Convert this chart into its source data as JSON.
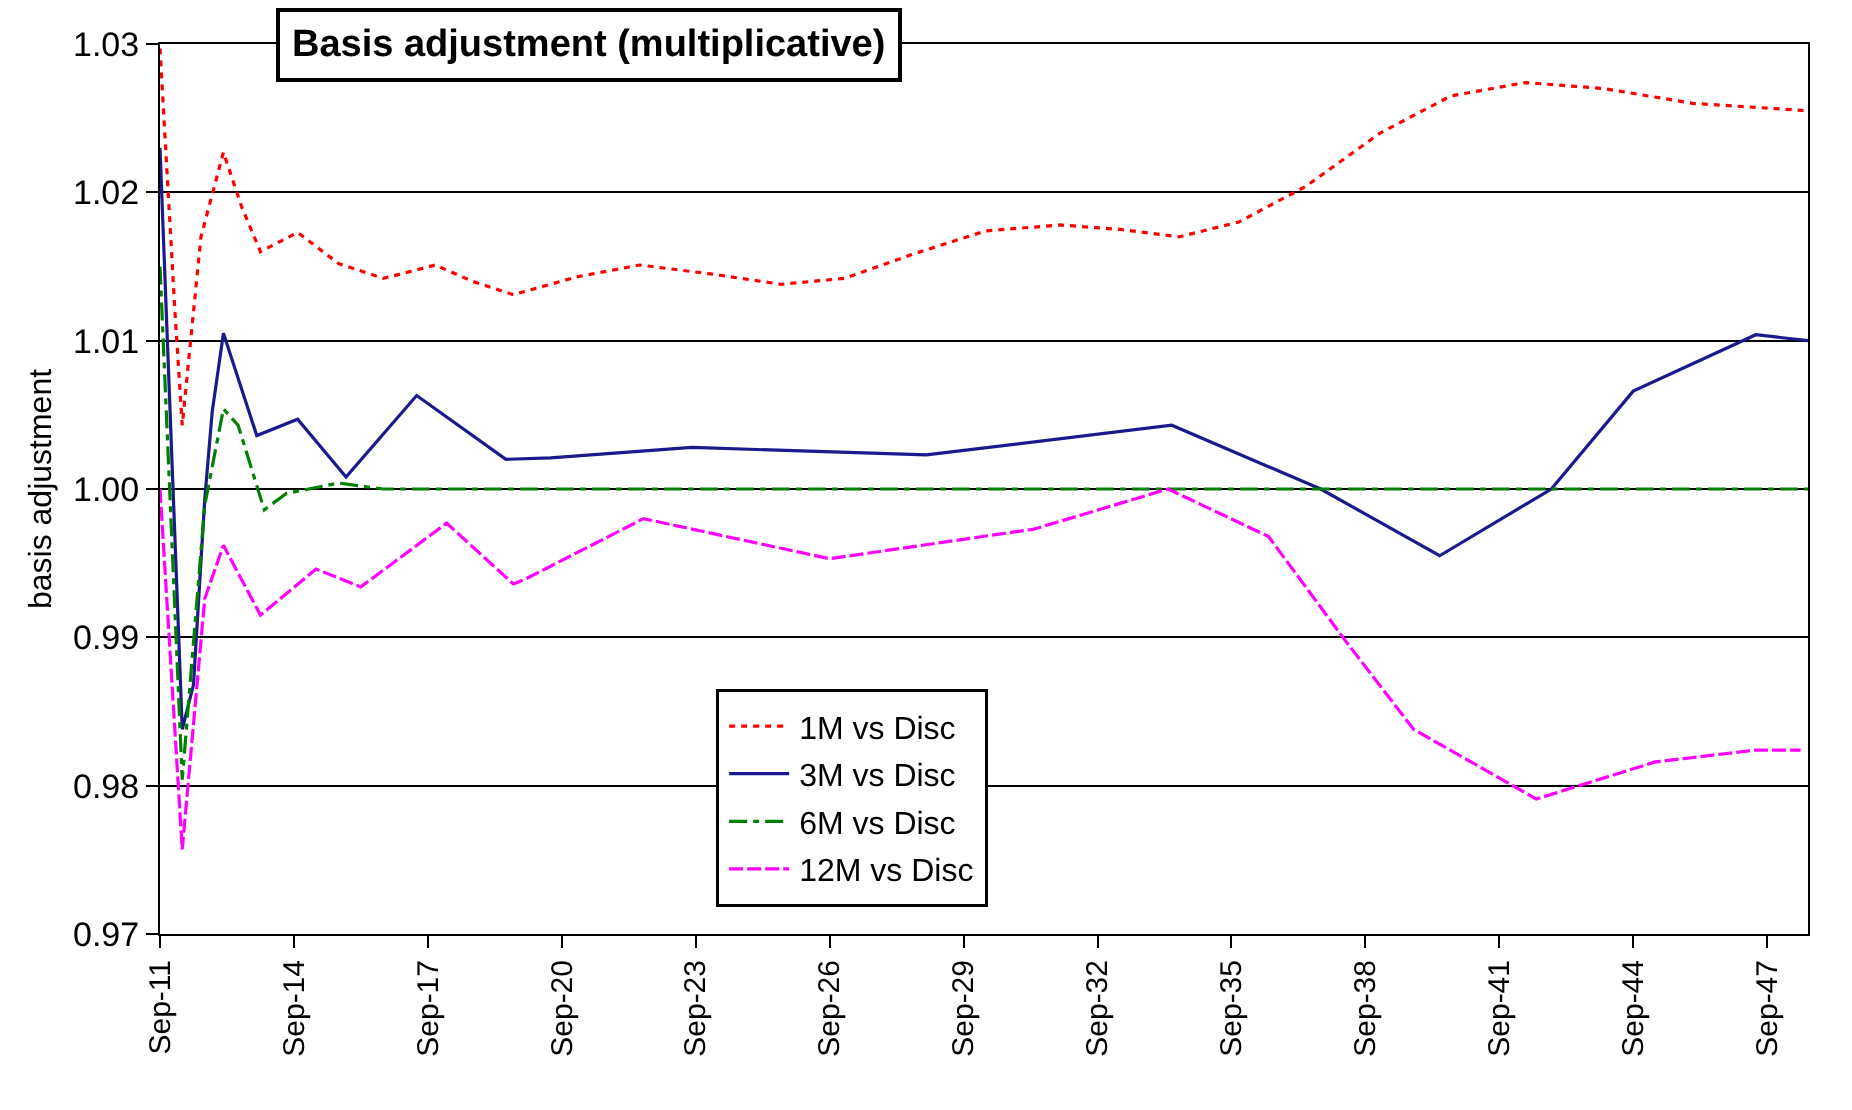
{
  "chart_data": {
    "type": "line",
    "title": "Basis adjustment (multiplicative)",
    "ylabel": "basis adjustment",
    "xlim": [
      "2011-09",
      "2048-08"
    ],
    "xticks": [
      {
        "value": "2011-09",
        "label": "Sep-11"
      },
      {
        "value": "2014-09",
        "label": "Sep-14"
      },
      {
        "value": "2017-09",
        "label": "Sep-17"
      },
      {
        "value": "2020-09",
        "label": "Sep-20"
      },
      {
        "value": "2023-09",
        "label": "Sep-23"
      },
      {
        "value": "2026-09",
        "label": "Sep-26"
      },
      {
        "value": "2029-09",
        "label": "Sep-29"
      },
      {
        "value": "2032-09",
        "label": "Sep-32"
      },
      {
        "value": "2035-09",
        "label": "Sep-35"
      },
      {
        "value": "2038-09",
        "label": "Sep-38"
      },
      {
        "value": "2041-09",
        "label": "Sep-41"
      },
      {
        "value": "2044-09",
        "label": "Sep-44"
      },
      {
        "value": "2047-09",
        "label": "Sep-47"
      }
    ],
    "ylim": [
      0.97,
      1.03
    ],
    "yticks": [
      {
        "value": 0.97,
        "label": "0.97"
      },
      {
        "value": 0.98,
        "label": "0.98"
      },
      {
        "value": 0.99,
        "label": "0.99"
      },
      {
        "value": 1.0,
        "label": "1.00"
      },
      {
        "value": 1.01,
        "label": "1.01"
      },
      {
        "value": 1.02,
        "label": "1.02"
      },
      {
        "value": 1.03,
        "label": "1.03"
      }
    ],
    "grid": "y",
    "legend": "bottom",
    "series": [
      {
        "name": "1M vs Disc",
        "color": "#ff0000",
        "line_style": "dotted",
        "x": [
          "2011-09",
          "2012-01",
          "2012-03",
          "2012-08",
          "2013-02",
          "2013-07",
          "2013-12",
          "2014-10",
          "2015-09",
          "2016-09",
          "2017-11",
          "2018-09",
          "2019-08",
          "2021-01",
          "2022-06",
          "2024-01",
          "2025-08",
          "2027-01",
          "2028-07",
          "2030-03",
          "2031-11",
          "2033-03",
          "2034-07",
          "2035-11",
          "2037-05",
          "2039-01",
          "2040-08",
          "2042-04",
          "2044-01",
          "2046-01",
          "2048-08"
        ],
        "values": [
          1.0297,
          1.012,
          1.0043,
          1.017,
          1.0227,
          1.019,
          1.016,
          1.0173,
          1.0152,
          1.0142,
          1.0151,
          1.014,
          1.0131,
          1.0143,
          1.0151,
          1.0145,
          1.0138,
          1.0142,
          1.0158,
          1.0174,
          1.0178,
          1.0175,
          1.017,
          1.018,
          1.0204,
          1.024,
          1.0265,
          1.0274,
          1.027,
          1.026,
          1.0255
        ]
      },
      {
        "name": "3M vs Disc",
        "color": "#1a1a8c",
        "line_style": "solid",
        "x": [
          "2011-09",
          "2012-03",
          "2012-06",
          "2012-09",
          "2012-11",
          "2013-02",
          "2013-11",
          "2014-10",
          "2015-11",
          "2017-06",
          "2019-06",
          "2020-06",
          "2023-08",
          "2028-11",
          "2034-05",
          "2037-09",
          "2040-05",
          "2042-11",
          "2044-09",
          "2047-06",
          "2048-08"
        ],
        "values": [
          1.023,
          0.9838,
          0.9868,
          0.9993,
          1.0052,
          1.0105,
          1.0036,
          1.0047,
          1.0008,
          1.0063,
          1.002,
          1.0021,
          1.0028,
          1.0023,
          1.0043,
          1.0,
          0.9955,
          1.0,
          1.0066,
          1.0104,
          1.01
        ]
      },
      {
        "name": "6M vs Disc",
        "color": "#008000",
        "line_style": "dashdot",
        "x": [
          "2011-09",
          "2012-03",
          "2012-09",
          "2013-02",
          "2013-06",
          "2014-01",
          "2014-07",
          "2015-09",
          "2016-09",
          "2048-08"
        ],
        "values": [
          1.015,
          0.9804,
          0.9989,
          1.0054,
          1.0043,
          0.9986,
          0.9997,
          1.0004,
          1.0,
          1.0
        ]
      },
      {
        "name": "12M vs Disc",
        "color": "#ff00ff",
        "line_style": "dashed",
        "x": [
          "2011-09",
          "2012-03",
          "2012-09",
          "2013-02",
          "2013-12",
          "2015-03",
          "2016-03",
          "2018-02",
          "2019-08",
          "2019-11",
          "2022-07",
          "2026-09",
          "2031-04",
          "2034-04",
          "2036-07",
          "2038-03",
          "2039-10",
          "2042-07",
          "2045-03",
          "2047-06",
          "2048-06"
        ],
        "values": [
          1.0,
          0.9757,
          0.9926,
          0.9962,
          0.9915,
          0.9946,
          0.9934,
          0.9977,
          0.9936,
          0.9939,
          0.998,
          0.9953,
          0.9973,
          1.0,
          0.9968,
          0.99,
          0.9838,
          0.9791,
          0.9816,
          0.9824,
          0.9824
        ]
      }
    ]
  }
}
